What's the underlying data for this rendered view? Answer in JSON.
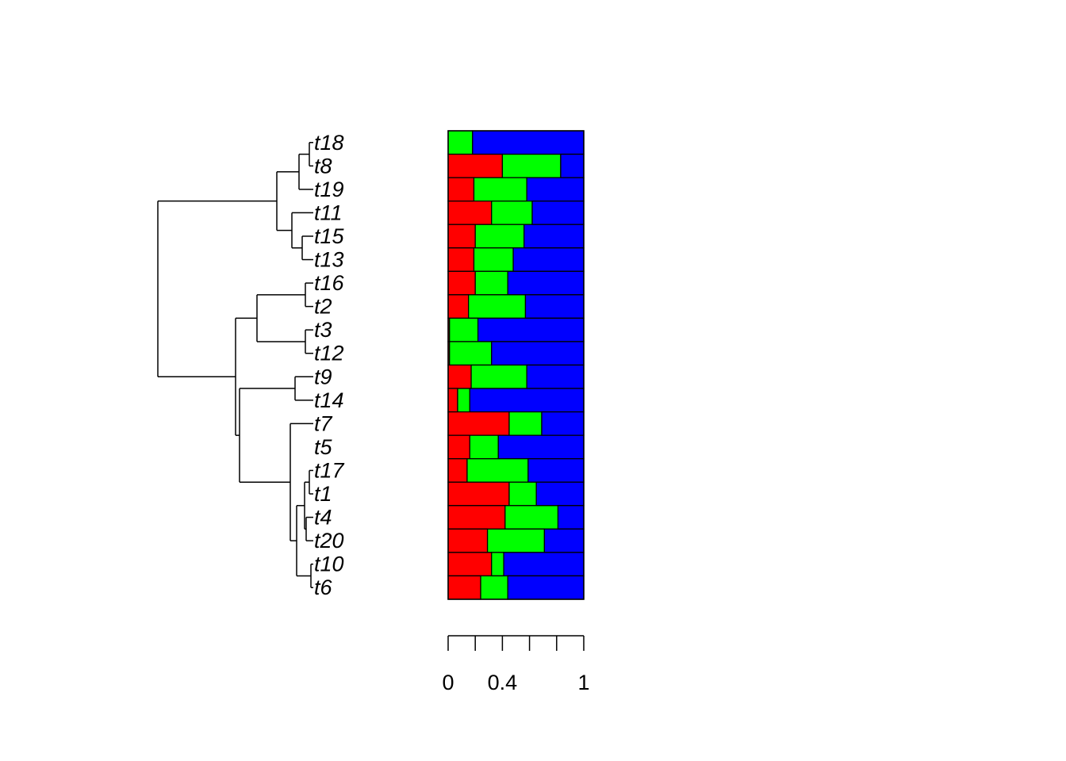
{
  "chart_data": {
    "type": "bar",
    "orientation": "horizontal",
    "stacked": true,
    "tip_labels": [
      "t18",
      "t8",
      "t19",
      "t11",
      "t15",
      "t13",
      "t16",
      "t2",
      "t3",
      "t12",
      "t9",
      "t14",
      "t7",
      "t5",
      "t17",
      "t1",
      "t4",
      "t20",
      "t10",
      "t6"
    ],
    "series": [
      {
        "color": "#ff0000",
        "values": [
          0.0,
          0.4,
          0.19,
          0.32,
          0.2,
          0.19,
          0.2,
          0.15,
          0.01,
          0.01,
          0.17,
          0.07,
          0.45,
          0.16,
          0.14,
          0.45,
          0.42,
          0.29,
          0.32,
          0.24
        ]
      },
      {
        "color": "#00ff00",
        "values": [
          0.18,
          0.43,
          0.39,
          0.3,
          0.36,
          0.29,
          0.24,
          0.42,
          0.21,
          0.31,
          0.41,
          0.09,
          0.24,
          0.21,
          0.45,
          0.2,
          0.39,
          0.42,
          0.09,
          0.2
        ]
      },
      {
        "color": "#0000ff",
        "values": [
          0.82,
          0.17,
          0.42,
          0.38,
          0.44,
          0.52,
          0.56,
          0.43,
          0.78,
          0.68,
          0.42,
          0.84,
          0.31,
          0.63,
          0.41,
          0.35,
          0.19,
          0.29,
          0.59,
          0.56
        ]
      }
    ],
    "x_axis": {
      "ticks": [
        0,
        0.2,
        0.4,
        0.6,
        0.8,
        1
      ],
      "tick_labels": [
        "0",
        "",
        "0.4",
        "",
        "",
        "1"
      ],
      "range": [
        0,
        1
      ]
    },
    "tree_edges": [
      [
        0,
        1,
        2,
        0.1
      ],
      [
        1,
        2,
        3,
        0.1
      ],
      [
        3,
        1,
        4,
        0.1
      ],
      [
        4,
        5,
        6,
        0.1
      ],
      [
        6,
        7,
        8,
        0.03
      ],
      [
        7,
        9,
        10,
        0.12
      ],
      [
        8,
        11,
        12,
        0.35
      ],
      [
        12,
        12,
        13,
        0.01
      ],
      [
        13,
        14,
        15,
        0.03
      ],
      [
        14,
        16,
        17,
        0.03
      ],
      [
        15,
        18,
        19,
        0.01
      ],
      [
        16,
        0,
        0,
        0.01
      ],
      [
        17,
        0,
        0,
        0.01
      ]
    ]
  }
}
